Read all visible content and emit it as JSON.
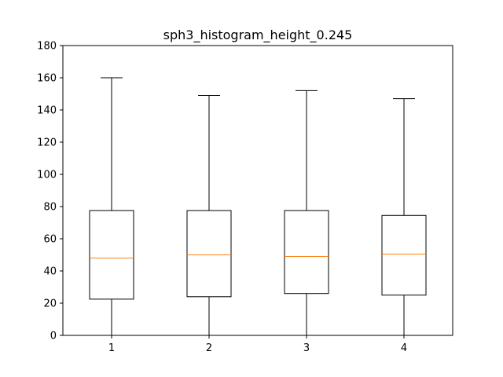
{
  "chart_data": {
    "type": "box",
    "title": "sph3_histogram_height_0.245",
    "xlabel": "",
    "ylabel": "",
    "categories": [
      "1",
      "2",
      "3",
      "4"
    ],
    "ylim": [
      0,
      180
    ],
    "yticks": [
      0,
      20,
      40,
      60,
      80,
      100,
      120,
      140,
      160,
      180
    ],
    "boxes": [
      {
        "category": "1",
        "whisker_low": 0,
        "q1": 22.5,
        "median": 48,
        "q3": 77.5,
        "whisker_high": 160
      },
      {
        "category": "2",
        "whisker_low": 0,
        "q1": 24,
        "median": 50,
        "q3": 77.5,
        "whisker_high": 149
      },
      {
        "category": "3",
        "whisker_low": 0,
        "q1": 26,
        "median": 49,
        "q3": 77.5,
        "whisker_high": 152
      },
      {
        "category": "4",
        "whisker_low": 0,
        "q1": 25,
        "median": 50.5,
        "q3": 74.5,
        "whisker_high": 147
      }
    ],
    "grid": false,
    "colors": {
      "box": "#000000",
      "median": "#ff7f0e",
      "axes": "#000000"
    }
  }
}
